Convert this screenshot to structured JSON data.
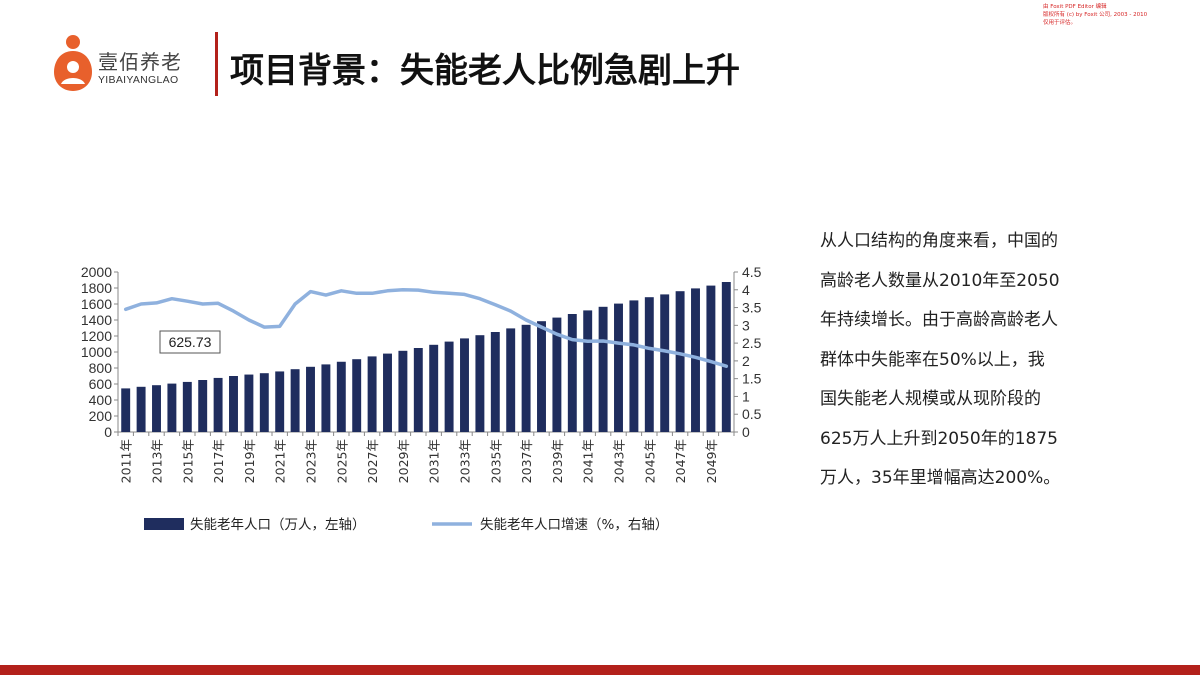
{
  "watermark": {
    "line1": "由 Foxit PDF Editor 编辑",
    "line2": "版权所有 (c) by Foxit 公司, 2003 - 2010",
    "line3": "仅用于评估。"
  },
  "logo": {
    "brand": "壹佰养老",
    "sub": "YIBAIYANGLAO"
  },
  "title": "项目背景：失能老人比例急剧上升",
  "description": {
    "lines": [
      "从人口结构的角度来看，中国的",
      "高龄老人数量从2010年至2050",
      "年持续增长。由于高龄高龄老人",
      "群体中失能率在50%以上，我",
      "国失能老人规模或从现阶段的",
      "625万人上升到2050年的1875",
      "万人，35年里增幅高达200%。"
    ]
  },
  "colors": {
    "accent": "#b3211b",
    "bar": "#1f2d5e",
    "line": "#8fb1de",
    "logo": "#e8602c"
  },
  "chart_data": {
    "type": "bar",
    "x": [
      "2011",
      "2012",
      "2013",
      "2014",
      "2015",
      "2016",
      "2017",
      "2018",
      "2019",
      "2020",
      "2021",
      "2022",
      "2023",
      "2024",
      "2025",
      "2026",
      "2027",
      "2028",
      "2029",
      "2030",
      "2031",
      "2032",
      "2033",
      "2034",
      "2035",
      "2036",
      "2037",
      "2038",
      "2039",
      "2040",
      "2041",
      "2042",
      "2043",
      "2044",
      "2045",
      "2046",
      "2047",
      "2048",
      "2049",
      "2050"
    ],
    "xtick_labels": [
      "2011年",
      "2013年",
      "2015年",
      "2017年",
      "2019年",
      "2021年",
      "2023年",
      "2025年",
      "2027年",
      "2029年",
      "2031年",
      "2033年",
      "2035年",
      "2037年",
      "2039年",
      "2041年",
      "2043年",
      "2045年",
      "2047年",
      "2049年"
    ],
    "annotation": "625.73",
    "series": [
      {
        "name": "失能老年人口（万人，左轴）",
        "type": "bar",
        "axis": "left",
        "values": [
          545,
          565,
          585,
          605,
          626,
          650,
          676,
          700,
          718,
          735,
          757,
          785,
          815,
          845,
          878,
          910,
          945,
          980,
          1015,
          1050,
          1090,
          1130,
          1170,
          1210,
          1250,
          1295,
          1340,
          1385,
          1430,
          1475,
          1520,
          1565,
          1605,
          1645,
          1685,
          1720,
          1760,
          1795,
          1830,
          1875
        ]
      },
      {
        "name": "失能老年人口增速（%，右轴）",
        "type": "line",
        "axis": "right",
        "values": [
          3.45,
          3.6,
          3.63,
          3.75,
          3.68,
          3.6,
          3.62,
          3.4,
          3.15,
          2.95,
          2.97,
          3.6,
          3.95,
          3.85,
          3.97,
          3.9,
          3.9,
          3.97,
          4.0,
          3.99,
          3.93,
          3.9,
          3.87,
          3.75,
          3.58,
          3.4,
          3.15,
          2.95,
          2.75,
          2.6,
          2.55,
          2.56,
          2.5,
          2.45,
          2.35,
          2.28,
          2.2,
          2.1,
          1.98,
          1.85
        ]
      }
    ],
    "y_left": {
      "ticks": [
        "0",
        "200",
        "400",
        "600",
        "800",
        "1000",
        "1200",
        "1400",
        "1600",
        "1800",
        "2000"
      ],
      "range": [
        0,
        2000
      ]
    },
    "y_right": {
      "ticks": [
        "0",
        "0.5",
        "1",
        "1.5",
        "2",
        "2.5",
        "3",
        "3.5",
        "4",
        "4.5"
      ],
      "range": [
        0,
        4.5
      ]
    },
    "grid": false,
    "legend_position": "bottom"
  }
}
